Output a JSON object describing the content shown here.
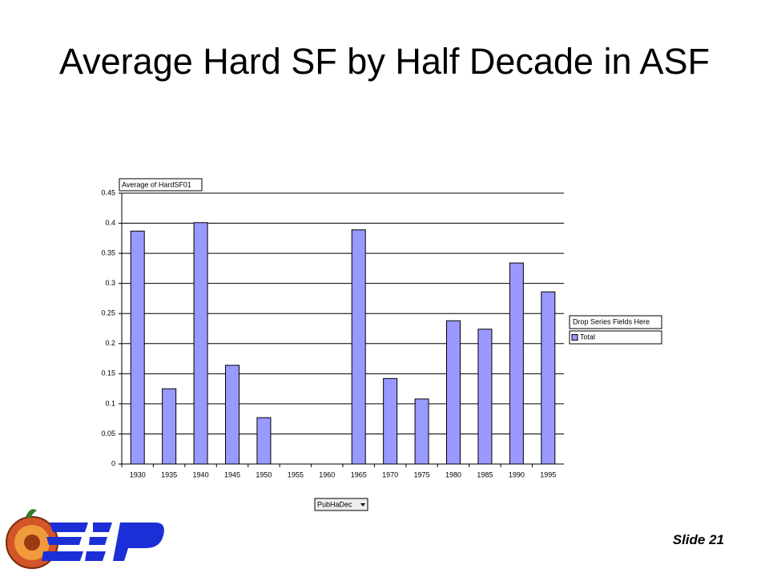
{
  "title": "Average Hard SF by Half Decade in ASF",
  "slide_label": "Slide 21",
  "chart_data": {
    "type": "bar",
    "data_field": "Average of HardSF01",
    "series_drop_zone": "Drop Series Fields Here",
    "category_field": "PubHaDec",
    "categories": [
      "1930",
      "1935",
      "1940",
      "1945",
      "1950",
      "1955",
      "1960",
      "1965",
      "1970",
      "1975",
      "1980",
      "1985",
      "1990",
      "1995"
    ],
    "series": [
      {
        "name": "Total",
        "color": "#9999ff",
        "values": [
          0.387,
          0.125,
          0.401,
          0.164,
          0.077,
          null,
          null,
          0.389,
          0.142,
          0.108,
          0.238,
          0.224,
          0.334,
          0.286
        ]
      }
    ],
    "ylim": [
      0,
      0.45
    ],
    "yticks": [
      0,
      0.05,
      0.1,
      0.15,
      0.2,
      0.25,
      0.3,
      0.35,
      0.4,
      0.45
    ],
    "grid": true
  }
}
